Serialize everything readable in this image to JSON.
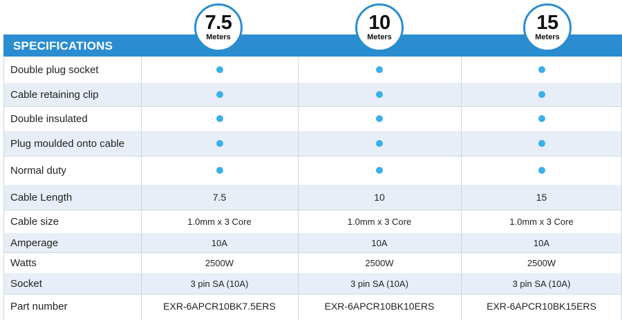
{
  "header": {
    "title": "SPECIFICATIONS",
    "accent_color": "#2a8dd0",
    "dot_color": "#39b0ea"
  },
  "badges": [
    {
      "number": "7.5",
      "unit": "Meters"
    },
    {
      "number": "10",
      "unit": "Meters"
    },
    {
      "number": "15",
      "unit": "Meters"
    }
  ],
  "features": [
    {
      "label": "Double  plug socket",
      "values": [
        true,
        true,
        true
      ]
    },
    {
      "label": "Cable retaining clip",
      "values": [
        true,
        true,
        true
      ]
    },
    {
      "label": "Double insulated",
      "values": [
        true,
        true,
        true
      ]
    },
    {
      "label": "Plug moulded onto cable",
      "values": [
        true,
        true,
        true
      ]
    },
    {
      "label": "Normal duty",
      "values": [
        true,
        true,
        true
      ]
    }
  ],
  "specs": [
    {
      "label": "Cable Length",
      "values": [
        "7.5",
        "10",
        "15"
      ]
    },
    {
      "label": "Cable size",
      "values": [
        "1.0mm x 3 Core",
        "1.0mm x 3 Core",
        "1.0mm x 3 Core"
      ]
    },
    {
      "label": "Amperage",
      "values": [
        "10A",
        "10A",
        "10A"
      ]
    },
    {
      "label": "Watts",
      "values": [
        "2500W",
        "2500W",
        "2500W"
      ]
    },
    {
      "label": "Socket",
      "values": [
        "3 pin SA (10A)",
        "3 pin SA (10A)",
        "3 pin SA (10A)"
      ]
    },
    {
      "label": "Part number",
      "values": [
        "EXR-6APCR10BK7.5ERS",
        "EXR-6APCR10BK10ERS",
        "EXR-6APCR10BK15ERS"
      ]
    }
  ]
}
